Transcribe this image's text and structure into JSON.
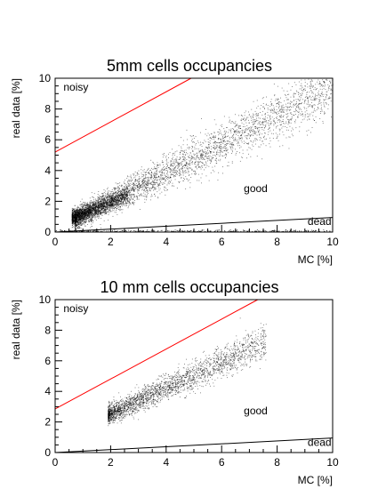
{
  "chart_data": [
    {
      "type": "scatter",
      "title": "5mm cells occupancies",
      "xlabel": "MC [%]",
      "ylabel": "real data [%]",
      "xlim": [
        0,
        10
      ],
      "ylim": [
        0,
        10
      ],
      "xticks": [
        0,
        2,
        4,
        6,
        8,
        10
      ],
      "yticks": [
        0,
        2,
        4,
        6,
        8,
        10
      ],
      "grid": false,
      "legend": "none",
      "region_labels": [
        {
          "text": "noisy",
          "x": 0.3,
          "y": 9.2
        },
        {
          "text": "good",
          "x": 6.8,
          "y": 2.6
        },
        {
          "text": "dead",
          "x": 9.1,
          "y": 0.45
        }
      ],
      "lines": [
        {
          "name": "noisy threshold",
          "color": "#ff0000",
          "x": [
            0,
            4.9
          ],
          "y": [
            5.2,
            10.0
          ]
        },
        {
          "name": "dead threshold",
          "color": "#000000",
          "x": [
            0,
            10
          ],
          "y": [
            0,
            0.95
          ]
        }
      ],
      "clusters": [
        {
          "x_range": [
            0.7,
            10
          ],
          "slope": 0.93,
          "intercept": 0.15,
          "spread": 0.35,
          "spread_growth": 0.06,
          "density": "high",
          "n": 3800
        },
        {
          "x_range": [
            0.6,
            2.6
          ],
          "slope": 0.7,
          "intercept": 0.55,
          "spread": 0.25,
          "spread_growth": 0.0,
          "density": "very high",
          "n": 1800
        },
        {
          "x_range": [
            0,
            10
          ],
          "y_level": 0.05,
          "spread": 0.05,
          "density": "low",
          "n": 300
        }
      ]
    },
    {
      "type": "scatter",
      "title": "10 mm cells occupancies",
      "xlabel": "MC [%]",
      "ylabel": "real data [%]",
      "xlim": [
        0,
        10
      ],
      "ylim": [
        0,
        10
      ],
      "xticks": [
        0,
        2,
        4,
        6,
        8,
        10
      ],
      "yticks": [
        0,
        2,
        4,
        6,
        8,
        10
      ],
      "grid": false,
      "legend": "none",
      "region_labels": [
        {
          "text": "noisy",
          "x": 0.3,
          "y": 9.2
        },
        {
          "text": "good",
          "x": 6.8,
          "y": 2.5
        },
        {
          "text": "dead",
          "x": 9.1,
          "y": 0.45
        }
      ],
      "lines": [
        {
          "name": "noisy threshold",
          "color": "#ff0000",
          "x": [
            0,
            7.3
          ],
          "y": [
            2.85,
            10.0
          ]
        },
        {
          "name": "dead threshold",
          "color": "#000000",
          "x": [
            0,
            10
          ],
          "y": [
            0,
            0.95
          ]
        }
      ],
      "clusters": [
        {
          "x_range": [
            1.9,
            7.6
          ],
          "slope": 0.85,
          "intercept": 0.85,
          "spread": 0.3,
          "spread_growth": 0.05,
          "density": "high",
          "n": 2600
        }
      ]
    }
  ]
}
